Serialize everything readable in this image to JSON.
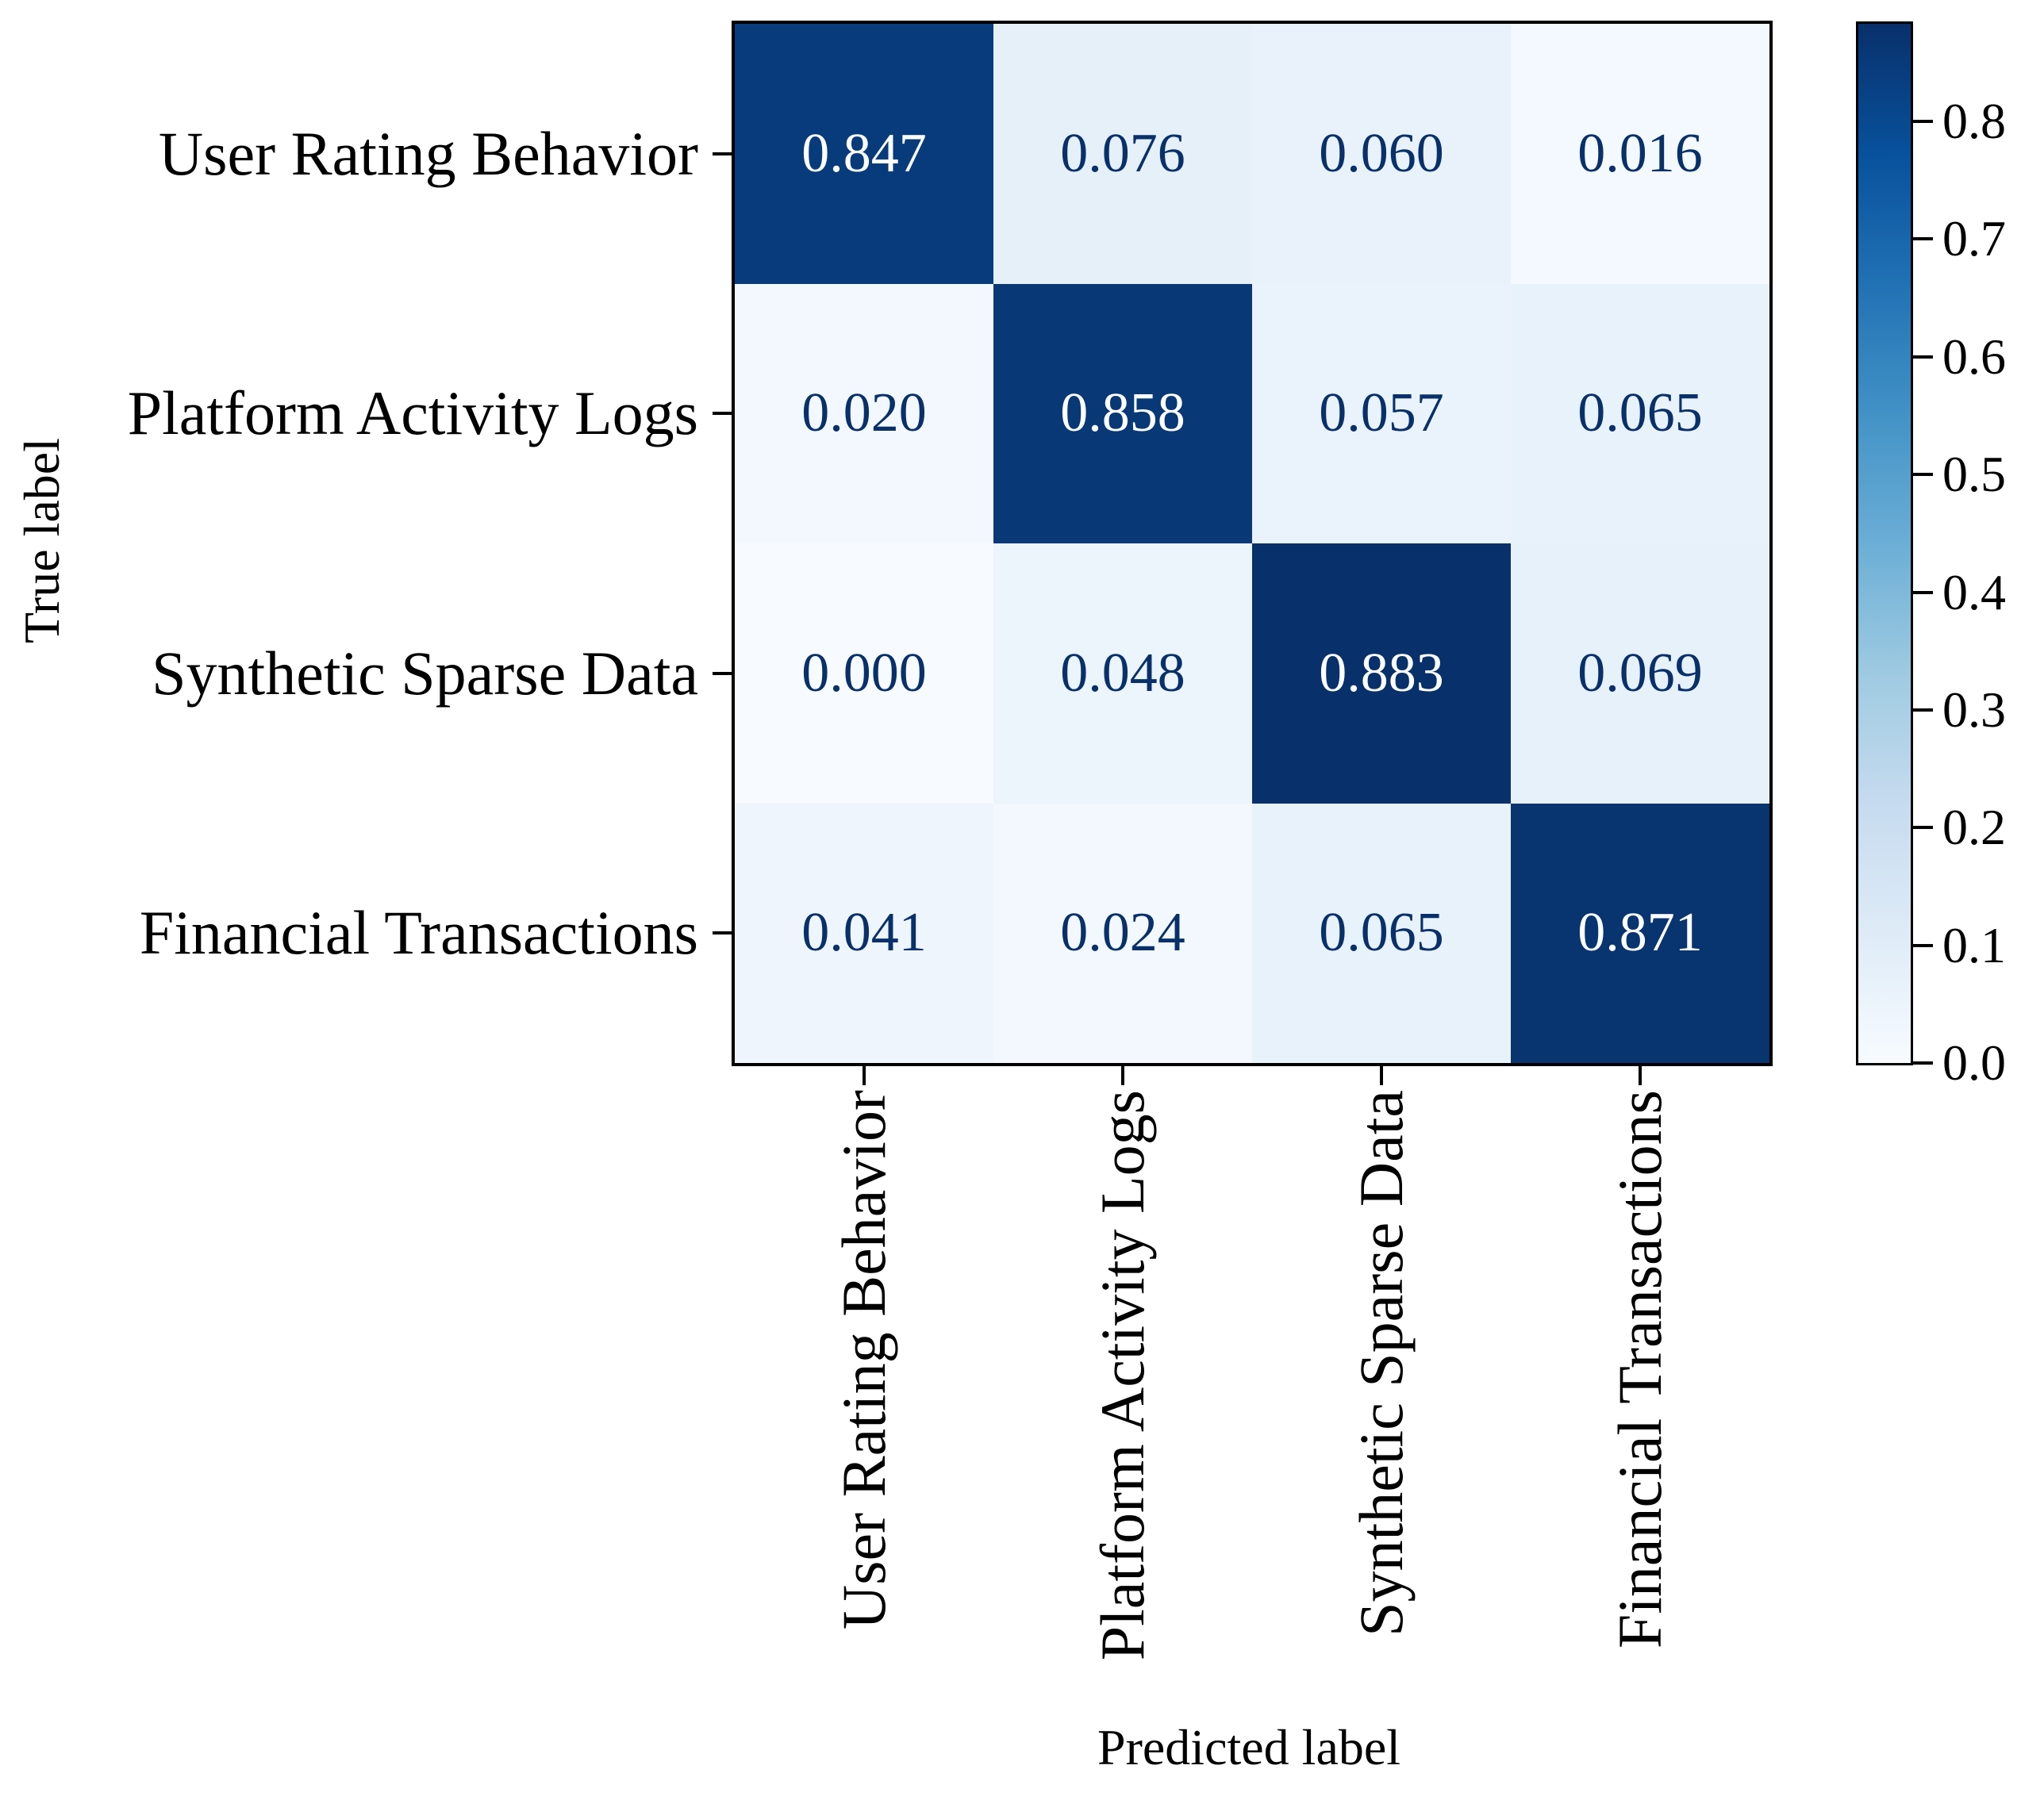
{
  "chart_data": {
    "type": "heatmap",
    "title": "",
    "xlabel": "Predicted label",
    "ylabel": "True label",
    "categories": [
      "User Rating Behavior",
      "Platform Activity Logs",
      "Synthetic Sparse Data",
      "Financial Transactions"
    ],
    "true_labels": [
      "User Rating Behavior",
      "Platform Activity Logs",
      "Synthetic Sparse Data",
      "Financial Transactions"
    ],
    "predicted_labels": [
      "User Rating Behavior",
      "Platform Activity Logs",
      "Synthetic Sparse Data",
      "Financial Transactions"
    ],
    "matrix": [
      [
        0.847,
        0.076,
        0.06,
        0.016
      ],
      [
        0.02,
        0.858,
        0.057,
        0.065
      ],
      [
        0.0,
        0.048,
        0.883,
        0.069
      ],
      [
        0.041,
        0.024,
        0.065,
        0.871
      ]
    ],
    "cell_text": [
      [
        "0.847",
        "0.076",
        "0.060",
        "0.016"
      ],
      [
        "0.020",
        "0.858",
        "0.057",
        "0.065"
      ],
      [
        "0.000",
        "0.048",
        "0.883",
        "0.069"
      ],
      [
        "0.041",
        "0.024",
        "0.065",
        "0.871"
      ]
    ],
    "colormap": "Blues",
    "vmin": 0.0,
    "vmax": 0.883,
    "grid": false,
    "legend_position": "right-colorbar"
  },
  "colorbar": {
    "ticks": [
      {
        "label": "0.8",
        "value": 0.8
      },
      {
        "label": "0.7",
        "value": 0.7
      },
      {
        "label": "0.6",
        "value": 0.6
      },
      {
        "label": "0.5",
        "value": 0.5
      },
      {
        "label": "0.4",
        "value": 0.4
      },
      {
        "label": "0.3",
        "value": 0.3
      },
      {
        "label": "0.2",
        "value": 0.2
      },
      {
        "label": "0.1",
        "value": 0.1
      },
      {
        "label": "0.0",
        "value": 0.0
      }
    ]
  },
  "colors": {
    "cell_text_on_dark": "#ffffff",
    "cell_text_on_light": "#08306b",
    "axis": "#000000",
    "cmap_stops": [
      "#f7fbff",
      "#deebf7",
      "#c6dbef",
      "#9ecae1",
      "#6baed6",
      "#4292c6",
      "#2171b5",
      "#08519c",
      "#08306b"
    ],
    "cell_bg": [
      [
        "#083b7b",
        "#e6f0f9",
        "#e9f2fb",
        "#f3f9fe"
      ],
      [
        "#f2f8fe",
        "#083876",
        "#eaf3fb",
        "#e8f2fa"
      ],
      [
        "#f7fbff",
        "#ecf4fc",
        "#08306b",
        "#e7f1fa"
      ],
      [
        "#eef5fc",
        "#f2f8fd",
        "#e8f2fa",
        "#083470"
      ]
    ]
  }
}
